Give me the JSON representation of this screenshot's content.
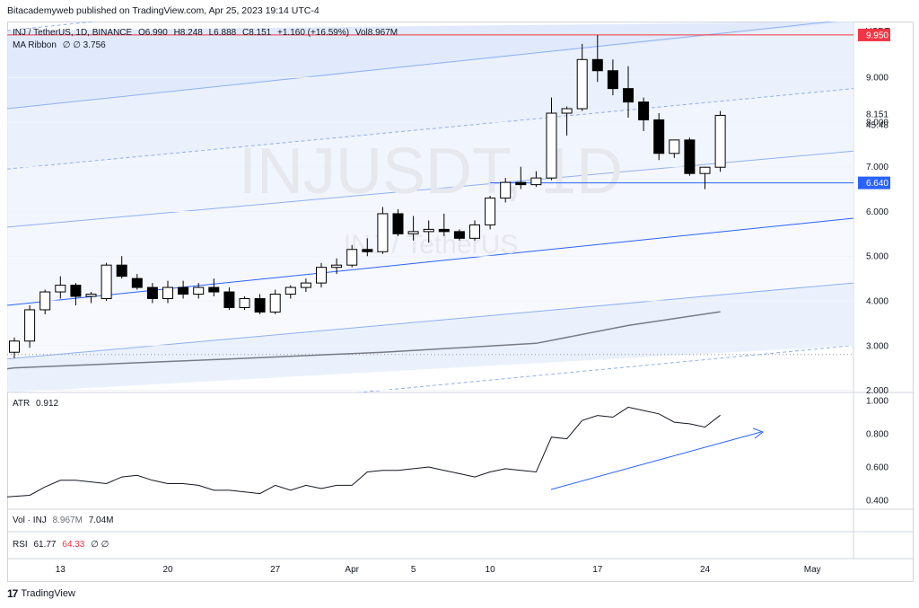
{
  "header": {
    "publisher": "Bitacademyweb published on TradingView.com, Apr 25, 2023 19:14 UTC-4"
  },
  "legend": {
    "symbol": "INJ / TetherUS, 1D, BINANCE",
    "open": "O6.990",
    "high": "H8.248",
    "low": "L6.888",
    "close": "C8.151",
    "change": "+1.160 (+16.59%)",
    "volume": "Vol8.967M",
    "ma_ribbon": "MA Ribbon",
    "ma_values": "∅  ∅  3.756"
  },
  "watermark": {
    "symbol": "INJUSDT, 1D",
    "name": "INJ / TetherUS"
  },
  "price_axis": {
    "currency": "USDT",
    "ticks": [
      "9.000",
      "8.000",
      "7.000",
      "6.000",
      "5.000",
      "4.000",
      "3.000",
      "2.000"
    ],
    "last_price": "8.151",
    "countdown": "45:48",
    "hline_red": "9.950",
    "hline_blue": "6.640"
  },
  "atr": {
    "label": "ATR",
    "value": "0.912",
    "ticks": [
      "1.000",
      "0.800",
      "0.600",
      "0.400"
    ]
  },
  "vol": {
    "label": "Vol · INJ",
    "value": "8.967M",
    "value2": "7.04M"
  },
  "rsi": {
    "label": "RSI",
    "value": "61.77",
    "value2": "64.33",
    "nulls": "∅  ∅"
  },
  "x_axis": {
    "ticks": [
      "13",
      "20",
      "27",
      "Apr",
      "5",
      "10",
      "17",
      "24",
      "May"
    ]
  },
  "footer": {
    "brand": "TradingView"
  },
  "colors": {
    "red_line": "#f23645",
    "blue_line": "#2962ff",
    "up": "#ffffff",
    "down": "#000000",
    "channel": "#2962ff"
  },
  "chart_data": {
    "type": "candlestick",
    "candles": [
      {
        "date": "2023-03-10",
        "o": 2.85,
        "h": 3.18,
        "l": 2.72,
        "c": 3.1
      },
      {
        "date": "2023-03-11",
        "o": 3.1,
        "h": 3.9,
        "l": 2.95,
        "c": 3.8
      },
      {
        "date": "2023-03-12",
        "o": 3.8,
        "h": 4.25,
        "l": 3.7,
        "c": 4.2
      },
      {
        "date": "2023-03-13",
        "o": 4.2,
        "h": 4.55,
        "l": 4.05,
        "c": 4.35
      },
      {
        "date": "2023-03-14",
        "o": 4.35,
        "h": 4.4,
        "l": 3.9,
        "c": 4.1
      },
      {
        "date": "2023-03-15",
        "o": 4.1,
        "h": 4.2,
        "l": 3.95,
        "c": 4.15
      },
      {
        "date": "2023-03-16",
        "o": 4.05,
        "h": 4.85,
        "l": 4.0,
        "c": 4.8
      },
      {
        "date": "2023-03-17",
        "o": 4.8,
        "h": 5.0,
        "l": 4.5,
        "c": 4.55
      },
      {
        "date": "2023-03-18",
        "o": 4.5,
        "h": 4.6,
        "l": 4.25,
        "c": 4.3
      },
      {
        "date": "2023-03-19",
        "o": 4.3,
        "h": 4.4,
        "l": 3.95,
        "c": 4.05
      },
      {
        "date": "2023-03-20",
        "o": 4.05,
        "h": 4.45,
        "l": 3.95,
        "c": 4.3
      },
      {
        "date": "2023-03-21",
        "o": 4.3,
        "h": 4.45,
        "l": 4.05,
        "c": 4.15
      },
      {
        "date": "2023-03-22",
        "o": 4.15,
        "h": 4.4,
        "l": 4.05,
        "c": 4.3
      },
      {
        "date": "2023-03-23",
        "o": 4.3,
        "h": 4.5,
        "l": 4.1,
        "c": 4.2
      },
      {
        "date": "2023-03-24",
        "o": 4.2,
        "h": 4.3,
        "l": 3.8,
        "c": 3.85
      },
      {
        "date": "2023-03-25",
        "o": 3.85,
        "h": 4.1,
        "l": 3.8,
        "c": 4.05
      },
      {
        "date": "2023-03-26",
        "o": 4.05,
        "h": 4.15,
        "l": 3.7,
        "c": 3.75
      },
      {
        "date": "2023-03-27",
        "o": 3.75,
        "h": 4.25,
        "l": 3.7,
        "c": 4.15
      },
      {
        "date": "2023-03-28",
        "o": 4.15,
        "h": 4.35,
        "l": 4.05,
        "c": 4.3
      },
      {
        "date": "2023-03-29",
        "o": 4.3,
        "h": 4.5,
        "l": 4.2,
        "c": 4.4
      },
      {
        "date": "2023-03-30",
        "o": 4.4,
        "h": 4.85,
        "l": 4.3,
        "c": 4.75
      },
      {
        "date": "2023-03-31",
        "o": 4.75,
        "h": 4.95,
        "l": 4.6,
        "c": 4.8
      },
      {
        "date": "2023-04-01",
        "o": 4.8,
        "h": 5.25,
        "l": 4.75,
        "c": 5.15
      },
      {
        "date": "2023-04-02",
        "o": 5.15,
        "h": 5.4,
        "l": 5.0,
        "c": 5.1
      },
      {
        "date": "2023-04-03",
        "o": 5.1,
        "h": 6.1,
        "l": 5.05,
        "c": 5.95
      },
      {
        "date": "2023-04-04",
        "o": 5.95,
        "h": 6.05,
        "l": 5.45,
        "c": 5.5
      },
      {
        "date": "2023-04-05",
        "o": 5.5,
        "h": 5.9,
        "l": 5.35,
        "c": 5.55
      },
      {
        "date": "2023-04-06",
        "o": 5.55,
        "h": 5.8,
        "l": 5.3,
        "c": 5.6
      },
      {
        "date": "2023-04-07",
        "o": 5.6,
        "h": 5.95,
        "l": 5.45,
        "c": 5.55
      },
      {
        "date": "2023-04-08",
        "o": 5.55,
        "h": 5.6,
        "l": 5.35,
        "c": 5.4
      },
      {
        "date": "2023-04-09",
        "o": 5.4,
        "h": 5.8,
        "l": 5.35,
        "c": 5.7
      },
      {
        "date": "2023-04-10",
        "o": 5.7,
        "h": 6.35,
        "l": 5.6,
        "c": 6.3
      },
      {
        "date": "2023-04-11",
        "o": 6.3,
        "h": 6.75,
        "l": 6.2,
        "c": 6.65
      },
      {
        "date": "2023-04-12",
        "o": 6.65,
        "h": 7.0,
        "l": 6.5,
        "c": 6.6
      },
      {
        "date": "2023-04-13",
        "o": 6.6,
        "h": 6.9,
        "l": 6.55,
        "c": 6.75
      },
      {
        "date": "2023-04-14",
        "o": 6.75,
        "h": 8.55,
        "l": 6.7,
        "c": 8.2
      },
      {
        "date": "2023-04-15",
        "o": 8.2,
        "h": 8.35,
        "l": 7.7,
        "c": 8.3
      },
      {
        "date": "2023-04-16",
        "o": 8.3,
        "h": 9.75,
        "l": 8.25,
        "c": 9.4
      },
      {
        "date": "2023-04-17",
        "o": 9.4,
        "h": 9.95,
        "l": 8.9,
        "c": 9.15
      },
      {
        "date": "2023-04-18",
        "o": 9.15,
        "h": 9.4,
        "l": 8.6,
        "c": 8.75
      },
      {
        "date": "2023-04-19",
        "o": 8.75,
        "h": 9.25,
        "l": 8.1,
        "c": 8.45
      },
      {
        "date": "2023-04-20",
        "o": 8.45,
        "h": 8.55,
        "l": 7.8,
        "c": 8.05
      },
      {
        "date": "2023-04-21",
        "o": 8.05,
        "h": 8.2,
        "l": 7.15,
        "c": 7.3
      },
      {
        "date": "2023-04-22",
        "o": 7.3,
        "h": 7.6,
        "l": 7.2,
        "c": 7.6
      },
      {
        "date": "2023-04-23",
        "o": 7.6,
        "h": 7.65,
        "l": 6.8,
        "c": 6.85
      },
      {
        "date": "2023-04-24",
        "o": 6.85,
        "h": 7.0,
        "l": 6.5,
        "c": 6.99
      },
      {
        "date": "2023-04-25",
        "o": 6.99,
        "h": 8.248,
        "l": 6.888,
        "c": 8.151
      }
    ],
    "ma_ribbon": {
      "name": "MA",
      "value_last": 3.756,
      "points": [
        {
          "date": "2023-03-10",
          "v": 2.5
        },
        {
          "date": "2023-03-24",
          "v": 2.7
        },
        {
          "date": "2023-04-03",
          "v": 2.85
        },
        {
          "date": "2023-04-13",
          "v": 3.05
        },
        {
          "date": "2023-04-19",
          "v": 3.45
        },
        {
          "date": "2023-04-25",
          "v": 3.756
        }
      ]
    },
    "atr": {
      "value_last": 0.912,
      "points": [
        0.42,
        0.43,
        0.48,
        0.52,
        0.52,
        0.51,
        0.5,
        0.54,
        0.55,
        0.52,
        0.5,
        0.5,
        0.49,
        0.46,
        0.46,
        0.45,
        0.44,
        0.49,
        0.46,
        0.49,
        0.47,
        0.49,
        0.49,
        0.57,
        0.58,
        0.58,
        0.59,
        0.6,
        0.58,
        0.56,
        0.54,
        0.57,
        0.59,
        0.58,
        0.57,
        0.78,
        0.77,
        0.88,
        0.91,
        0.9,
        0.96,
        0.94,
        0.92,
        0.87,
        0.86,
        0.84,
        0.912
      ]
    },
    "channel": {
      "lines": [
        {
          "style": "dashed",
          "d0": 10.05,
          "d1": 12.0
        },
        {
          "style": "solid",
          "d0": 8.3,
          "d1": 10.3
        },
        {
          "style": "dashed",
          "d0": 6.95,
          "d1": 8.75
        },
        {
          "style": "solid",
          "d0": 5.65,
          "d1": 7.35
        },
        {
          "style": "solid-blue",
          "d0": 3.9,
          "d1": 5.85
        },
        {
          "style": "solid",
          "d0": 2.7,
          "d1": 4.4
        },
        {
          "style": "dashed",
          "d0": 1.2,
          "d1": 3.0
        }
      ]
    },
    "ylim": [
      1.95,
      10.25
    ],
    "atr_ylim": [
      0.4,
      1.0
    ]
  }
}
